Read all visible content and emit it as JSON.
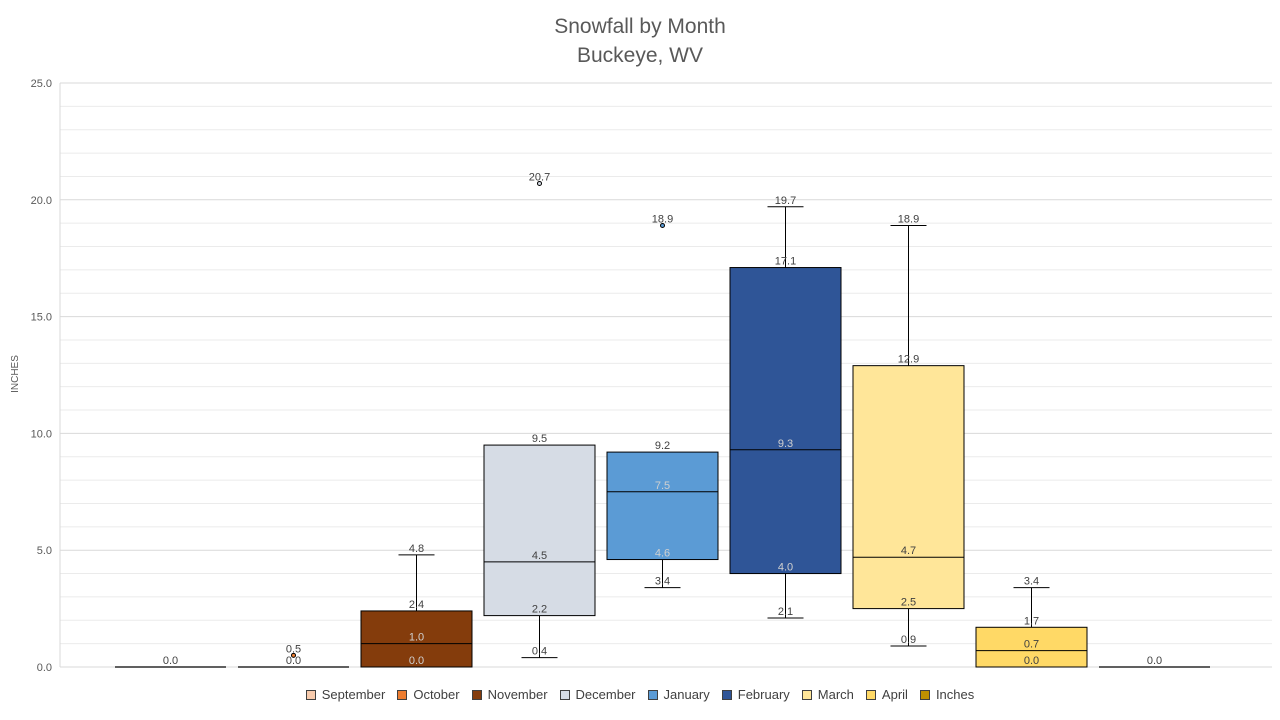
{
  "chart_data": {
    "type": "boxplot",
    "title": "Snowfall by Month",
    "subtitle": "Buckeye, WV",
    "ylabel": "INCHES",
    "ylim": [
      0,
      25
    ],
    "yticks": [
      "0.0",
      "5.0",
      "10.0",
      "15.0",
      "20.0",
      "25.0"
    ],
    "grid": true,
    "legend_position": "bottom",
    "legend": [
      {
        "name": "September",
        "color": "#F8CBAD"
      },
      {
        "name": "October",
        "color": "#ED7D31"
      },
      {
        "name": "November",
        "color": "#843C0C"
      },
      {
        "name": "December",
        "color": "#D6DCE5"
      },
      {
        "name": "January",
        "color": "#5B9BD5"
      },
      {
        "name": "February",
        "color": "#2F5597"
      },
      {
        "name": "March",
        "color": "#FFE699"
      },
      {
        "name": "April",
        "color": "#FFD966"
      },
      {
        "name": "Inches",
        "color": "#BF9000"
      }
    ],
    "boxes": [
      {
        "color": "#F8CBAD",
        "min": 0.0,
        "q1": 0.0,
        "median": 0.0,
        "q3": 0.0,
        "max": 0.0,
        "outliers": [],
        "labels": [
          {
            "v": 0.0,
            "t": "0.0"
          }
        ]
      },
      {
        "color": "#ED7D31",
        "min": 0.0,
        "q1": 0.0,
        "median": 0.0,
        "q3": 0.0,
        "max": 0.0,
        "outliers": [
          0.5
        ],
        "labels": [
          {
            "v": 0.5,
            "t": "0.5"
          },
          {
            "v": 0.0,
            "t": "0.0"
          }
        ]
      },
      {
        "color": "#843C0C",
        "min": 0.0,
        "q1": 0.0,
        "median": 1.0,
        "q3": 2.4,
        "max": 4.8,
        "outliers": [],
        "labels": [
          {
            "v": 4.8,
            "t": "4.8"
          },
          {
            "v": 2.4,
            "t": "2.4"
          },
          {
            "v": 1.0,
            "t": "1.0"
          },
          {
            "v": 0.0,
            "t": "0.0"
          }
        ]
      },
      {
        "color": "#D6DCE5",
        "min": 0.4,
        "q1": 2.2,
        "median": 4.5,
        "q3": 9.5,
        "max": 9.5,
        "outliers": [
          20.7
        ],
        "labels": [
          {
            "v": 20.7,
            "t": "20.7"
          },
          {
            "v": 9.5,
            "t": "9.5"
          },
          {
            "v": 4.5,
            "t": "4.5"
          },
          {
            "v": 2.2,
            "t": "2.2"
          },
          {
            "v": 0.4,
            "t": "0.4"
          }
        ]
      },
      {
        "color": "#5B9BD5",
        "min": 3.4,
        "q1": 4.6,
        "median": 7.5,
        "q3": 9.2,
        "max": 9.2,
        "outliers": [
          18.9
        ],
        "labels": [
          {
            "v": 18.9,
            "t": "18.9"
          },
          {
            "v": 9.2,
            "t": "9.2"
          },
          {
            "v": 7.5,
            "t": "7.5"
          },
          {
            "v": 4.6,
            "t": "4.6"
          },
          {
            "v": 3.4,
            "t": "3.4"
          }
        ]
      },
      {
        "color": "#2F5597",
        "min": 2.1,
        "q1": 4.0,
        "median": 9.3,
        "q3": 17.1,
        "max": 19.7,
        "outliers": [],
        "labels": [
          {
            "v": 19.7,
            "t": "19.7"
          },
          {
            "v": 17.1,
            "t": "17.1"
          },
          {
            "v": 9.3,
            "t": "9.3"
          },
          {
            "v": 4.0,
            "t": "4.0"
          },
          {
            "v": 2.1,
            "t": "2.1"
          }
        ]
      },
      {
        "color": "#FFE699",
        "min": 0.9,
        "q1": 2.5,
        "median": 4.7,
        "q3": 12.9,
        "max": 18.9,
        "outliers": [],
        "labels": [
          {
            "v": 18.9,
            "t": "18.9"
          },
          {
            "v": 12.9,
            "t": "12.9"
          },
          {
            "v": 4.7,
            "t": "4.7"
          },
          {
            "v": 2.5,
            "t": "2.5"
          },
          {
            "v": 0.9,
            "t": "0.9"
          }
        ]
      },
      {
        "color": "#FFD966",
        "min": 0.0,
        "q1": 0.0,
        "median": 0.7,
        "q3": 1.7,
        "max": 3.4,
        "outliers": [],
        "labels": [
          {
            "v": 3.4,
            "t": "3.4"
          },
          {
            "v": 1.7,
            "t": "1.7"
          },
          {
            "v": 0.7,
            "t": "0.7"
          },
          {
            "v": 0.0,
            "t": "0.0"
          }
        ]
      },
      {
        "color": "#BF9000",
        "min": 0.0,
        "q1": 0.0,
        "median": 0.0,
        "q3": 0.0,
        "max": 0.0,
        "outliers": [],
        "labels": [
          {
            "v": 0.0,
            "t": "0.0"
          }
        ]
      }
    ]
  }
}
